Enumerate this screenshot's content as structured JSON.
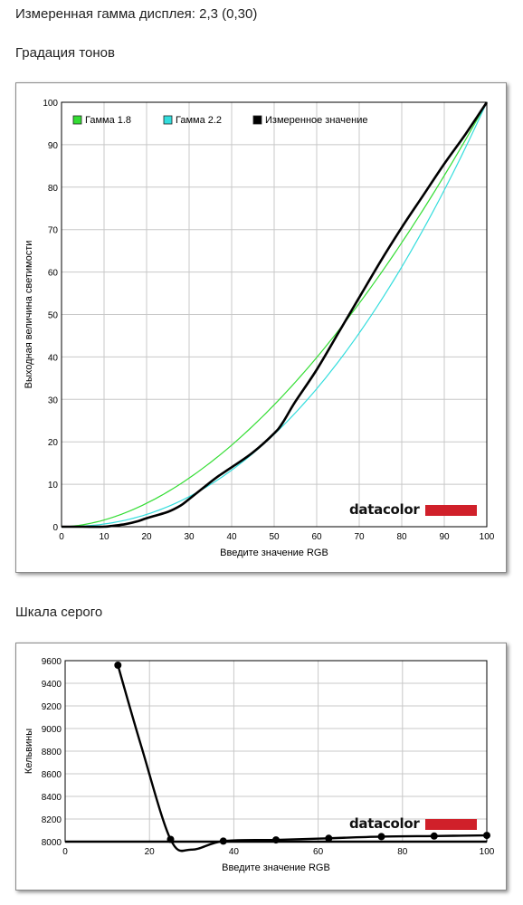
{
  "header": {
    "measured_gamma": "Измеренная гамма дисплея: 2,3 (0,30)",
    "tone_title": "Градация тонов",
    "gray_title": "Шкала серого"
  },
  "logo": {
    "text": "datacolor",
    "bar_color": "#d0202a"
  },
  "colors": {
    "gamma18": "#33dd33",
    "gamma22": "#33dddd",
    "measured": "#000000",
    "grid": "#c8c8c8"
  },
  "chart_data": [
    {
      "type": "line",
      "title": "Градация тонов",
      "xlabel": "Введите значение RGB",
      "ylabel": "Выходная величина светимости",
      "xlim": [
        0,
        100
      ],
      "ylim": [
        0,
        100
      ],
      "xticks": [
        0,
        10,
        20,
        30,
        40,
        50,
        60,
        70,
        80,
        90,
        100
      ],
      "yticks": [
        0,
        10,
        20,
        30,
        40,
        50,
        60,
        70,
        80,
        90,
        100
      ],
      "grid": true,
      "legend_position": "top-left",
      "series": [
        {
          "name": "Гамма 1.8",
          "color": "#33dd33",
          "function": "power",
          "gamma": 1.8
        },
        {
          "name": "Гамма 2.2",
          "color": "#33dddd",
          "function": "power",
          "gamma": 2.2
        },
        {
          "name": "Измеренное значение",
          "color": "#000000",
          "x": [
            0,
            5,
            10,
            12,
            15,
            18,
            20,
            25,
            28,
            30,
            35,
            37,
            40,
            45,
            50,
            52,
            55,
            60,
            65,
            70,
            75,
            80,
            85,
            90,
            95,
            100
          ],
          "y": [
            0,
            0,
            0,
            0.2,
            0.6,
            1.3,
            2,
            3.5,
            5,
            6.5,
            10.5,
            12,
            14,
            17.5,
            22,
            24.5,
            29.5,
            37,
            45.5,
            54,
            62.5,
            70.5,
            78,
            85.5,
            92.5,
            100
          ]
        }
      ]
    },
    {
      "type": "line",
      "title": "Шкала серого",
      "xlabel": "Введите значение RGB",
      "ylabel": "Кельвины",
      "xlim": [
        0,
        100
      ],
      "ylim": [
        8000,
        9600
      ],
      "xticks": [
        0,
        20,
        40,
        60,
        80,
        100
      ],
      "yticks": [
        8000,
        8200,
        8400,
        8600,
        8800,
        9000,
        9200,
        9400,
        9600
      ],
      "grid": true,
      "series": [
        {
          "name": "",
          "color": "#000000",
          "x": [
            12.5,
            25,
            37.5,
            50,
            62.5,
            75,
            87.5,
            100
          ],
          "y": [
            9560,
            8020,
            8005,
            8015,
            8030,
            8045,
            8050,
            8055
          ]
        }
      ]
    }
  ]
}
